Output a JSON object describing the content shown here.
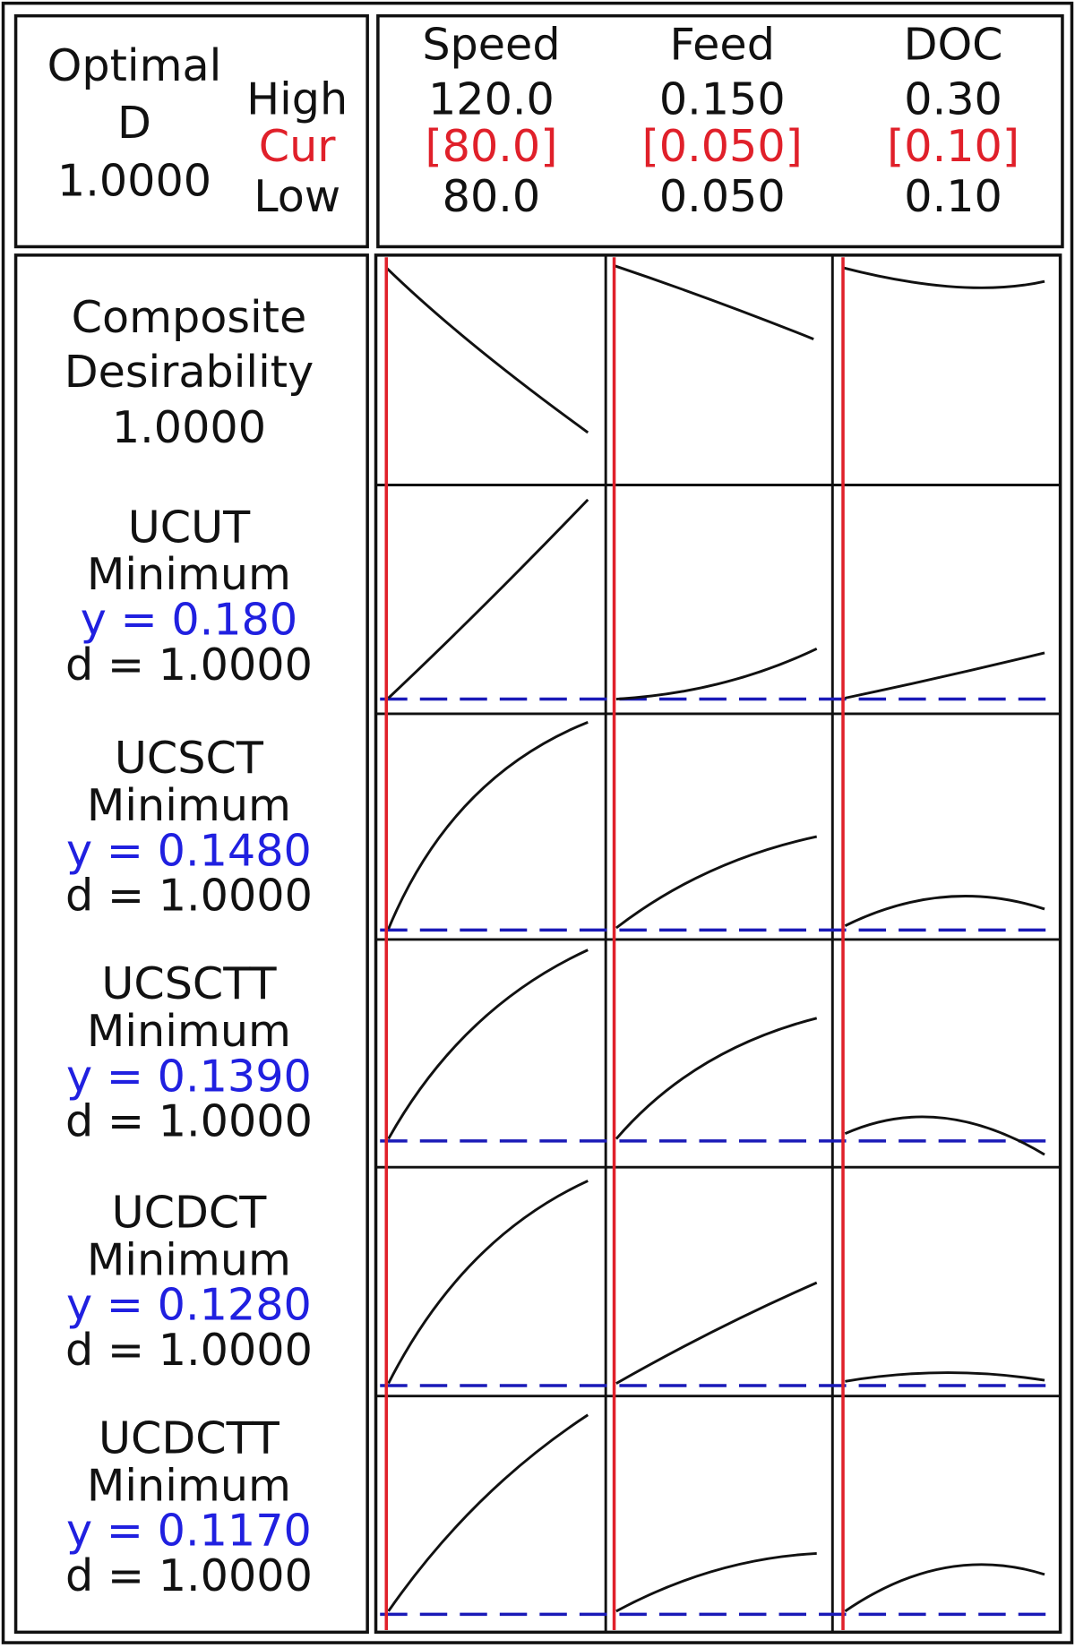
{
  "header": {
    "optimal": "Optimal",
    "d_label": "D",
    "d_value": "1.0000",
    "high": "High",
    "cur": "Cur",
    "low": "Low"
  },
  "factors": [
    {
      "name": "Speed",
      "high": "120.0",
      "cur": "[80.0]",
      "low": "80.0"
    },
    {
      "name": "Feed",
      "high": "0.150",
      "cur": "[0.050]",
      "low": "0.050"
    },
    {
      "name": "DOC",
      "high": "0.30",
      "cur": "[0.10]",
      "low": "0.10"
    }
  ],
  "composite": {
    "line1": "Composite",
    "line2": "Desirability",
    "d": "1.0000"
  },
  "responses": [
    {
      "name": "UCUT",
      "goal": "Minimum",
      "y": "y = 0.180",
      "d": "d = 1.0000"
    },
    {
      "name": "UCSCT",
      "goal": "Minimum",
      "y": "y = 0.1480",
      "d": "d = 1.0000"
    },
    {
      "name": "UCSCTT",
      "goal": "Minimum",
      "y": "y = 0.1390",
      "d": "d = 1.0000"
    },
    {
      "name": "UCDCT",
      "goal": "Minimum",
      "y": "y = 0.1280",
      "d": "d = 1.0000"
    },
    {
      "name": "UCDCTT",
      "goal": "Minimum",
      "y": "y = 0.1170",
      "d": "d = 1.0000"
    }
  ]
}
